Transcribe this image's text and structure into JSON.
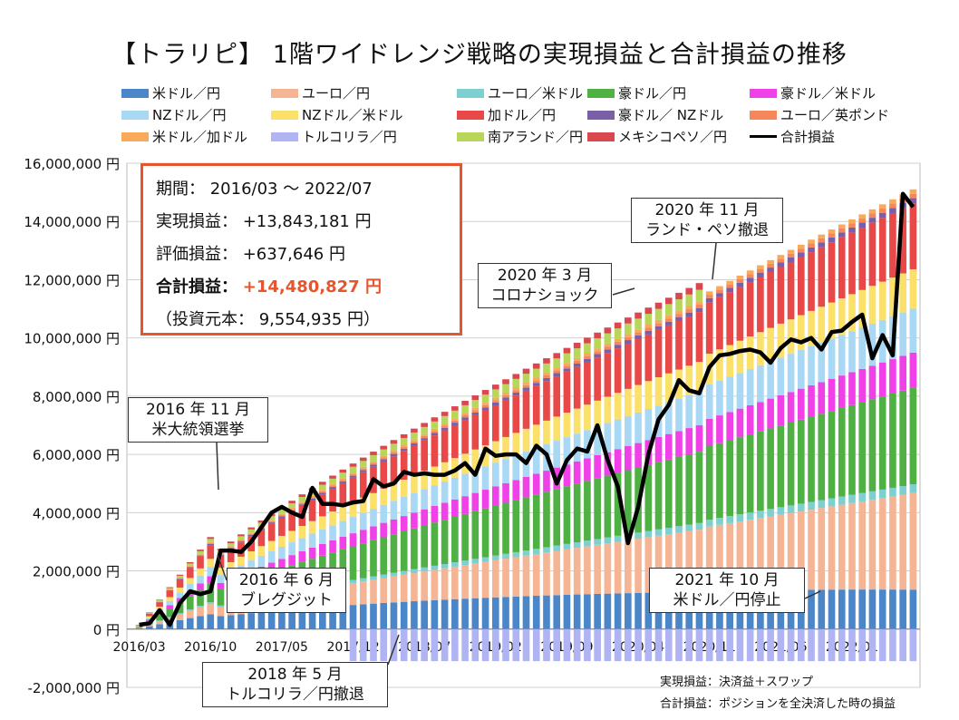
{
  "title": "【トラリピ】 1階ワイドレンジ戦略の実現損益と合計損益の推移",
  "legend": [
    {
      "label": "米ドル／円",
      "color": "#4a86c8"
    },
    {
      "label": "ユーロ／円",
      "color": "#f5b594"
    },
    {
      "label": "ユーロ／米ドル",
      "color": "#7ecfcf"
    },
    {
      "label": "豪ドル／円",
      "color": "#4fb043"
    },
    {
      "label": "豪ドル／米ドル",
      "color": "#f040e8"
    },
    {
      "label": "NZドル／円",
      "color": "#a9d8f5"
    },
    {
      "label": "NZドル／米ドル",
      "color": "#fbe06a"
    },
    {
      "label": "加ドル／円",
      "color": "#e84848"
    },
    {
      "label": "豪ドル／ NZドル",
      "color": "#7a5fa8"
    },
    {
      "label": "ユーロ／英ポンド",
      "color": "#f5875a"
    },
    {
      "label": "米ドル／加ドル",
      "color": "#f9a95a"
    },
    {
      "label": "トルコリラ／円",
      "color": "#b0b4f2"
    },
    {
      "label": "南アランド／円",
      "color": "#b8d65a"
    },
    {
      "label": "メキシコペソ／円",
      "color": "#d9484f"
    },
    {
      "label": "合計損益",
      "color": "#000000",
      "line": true
    }
  ],
  "info": {
    "period": "期間： 2016/03 ～ 2022/07",
    "realized": "実現損益： +13,843,181 円",
    "unrealized": "評価損益： +637,646 円",
    "total_label": "合計損益：",
    "total_value": "+14,480,827 円",
    "principal": "（投資元本： 9,554,935 円）"
  },
  "callouts": {
    "brexit_1": "2016 年 6 月",
    "brexit_2": "ブレグジット",
    "election_1": "2016 年 11 月",
    "election_2": "米大統領選挙",
    "turkey_1": "2018 年 5 月",
    "turkey_2": "トルコリラ／円撤退",
    "corona_1": "2020 年 3 月",
    "corona_2": "コロナショック",
    "exit_1": "2020 年 11 月",
    "exit_2": "ランド・ペソ撤退",
    "usdjpy_1": "2021 年 10 月",
    "usdjpy_2": "米ドル／円停止"
  },
  "notes": {
    "note1": "実現損益：決済益＋スワップ",
    "note2": "合計損益：ポジションを全決済した時の損益"
  },
  "chart_data": {
    "type": "bar",
    "stacked": true,
    "title": "【トラリピ】 1階ワイドレンジ戦略の実現損益と合計損益の推移",
    "ylim": [
      -2000000,
      16000000
    ],
    "yticks": [
      "-2,000,000 円",
      "0 円",
      "2,000,000 円",
      "4,000,000 円",
      "6,000,000 円",
      "8,000,000 円",
      "10,000,000 円",
      "12,000,000 円",
      "14,000,000 円",
      "16,000,000 円"
    ],
    "xticks": [
      "2016/03",
      "2016/10",
      "2017/05",
      "2017/12",
      "2018/07",
      "2019/02",
      "2019/09",
      "2020/04",
      "2020/11",
      "2021/06",
      "2022/01"
    ],
    "grid": true,
    "legend_position": "top",
    "series_names": [
      "米ドル／円",
      "ユーロ／円",
      "ユーロ／米ドル",
      "豪ドル／円",
      "豪ドル／米ドル",
      "NZドル／円",
      "NZドル／米ドル",
      "加ドル／円",
      "豪ドル／ NZドル",
      "ユーロ／英ポンド",
      "米ドル／加ドル",
      "トルコリラ／円",
      "南アランド／円",
      "メキシコペソ／円"
    ],
    "stack_totals_start": 150000,
    "stack_totals_end": 15250000,
    "line_series": {
      "name": "合計損益",
      "values": [
        150000,
        200000,
        650000,
        150000,
        900000,
        1300000,
        1200000,
        1300000,
        2700000,
        2700000,
        2650000,
        3000000,
        3500000,
        4000000,
        4200000,
        4000000,
        3850000,
        4850000,
        4300000,
        4300000,
        4250000,
        4350000,
        4400000,
        5150000,
        4900000,
        5000000,
        5400000,
        5300000,
        5350000,
        5300000,
        5300000,
        5450000,
        5700000,
        5300000,
        6200000,
        5950000,
        6000000,
        6000000,
        5700000,
        6300000,
        6000000,
        5000000,
        5800000,
        6200000,
        6100000,
        7000000,
        5800000,
        4900000,
        2950000,
        4200000,
        6000000,
        7200000,
        7700000,
        8550000,
        8200000,
        8100000,
        9000000,
        9400000,
        9450000,
        9550000,
        9600000,
        9500000,
        9150000,
        9650000,
        9950000,
        9850000,
        10000000,
        9600000,
        10200000,
        10250000,
        10550000,
        10800000,
        9300000,
        10100000,
        9400000,
        14950000,
        14500000
      ]
    }
  }
}
